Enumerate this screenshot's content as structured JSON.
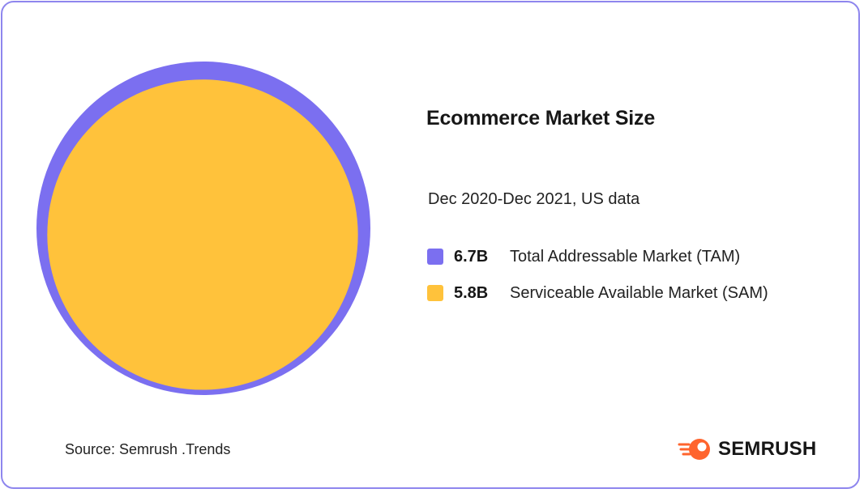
{
  "chart_data": {
    "type": "bubble",
    "title": "Ecommerce Market Size",
    "subtitle": "Dec 2020-Dec 2021, US data",
    "series": [
      {
        "name": "Total Addressable Market (TAM)",
        "value": 6.7,
        "value_label": "6.7B",
        "color": "#7b6ff0"
      },
      {
        "name": "Serviceable Available Market (SAM)",
        "value": 5.8,
        "value_label": "5.8B",
        "color": "#ffc23b"
      }
    ]
  },
  "source": "Source: Semrush .Trends",
  "brand": {
    "name": "SEMRUSH",
    "color": "#ff642d",
    "icon": "semrush-logo-icon"
  },
  "colors": {
    "border": "#8e86ee"
  }
}
